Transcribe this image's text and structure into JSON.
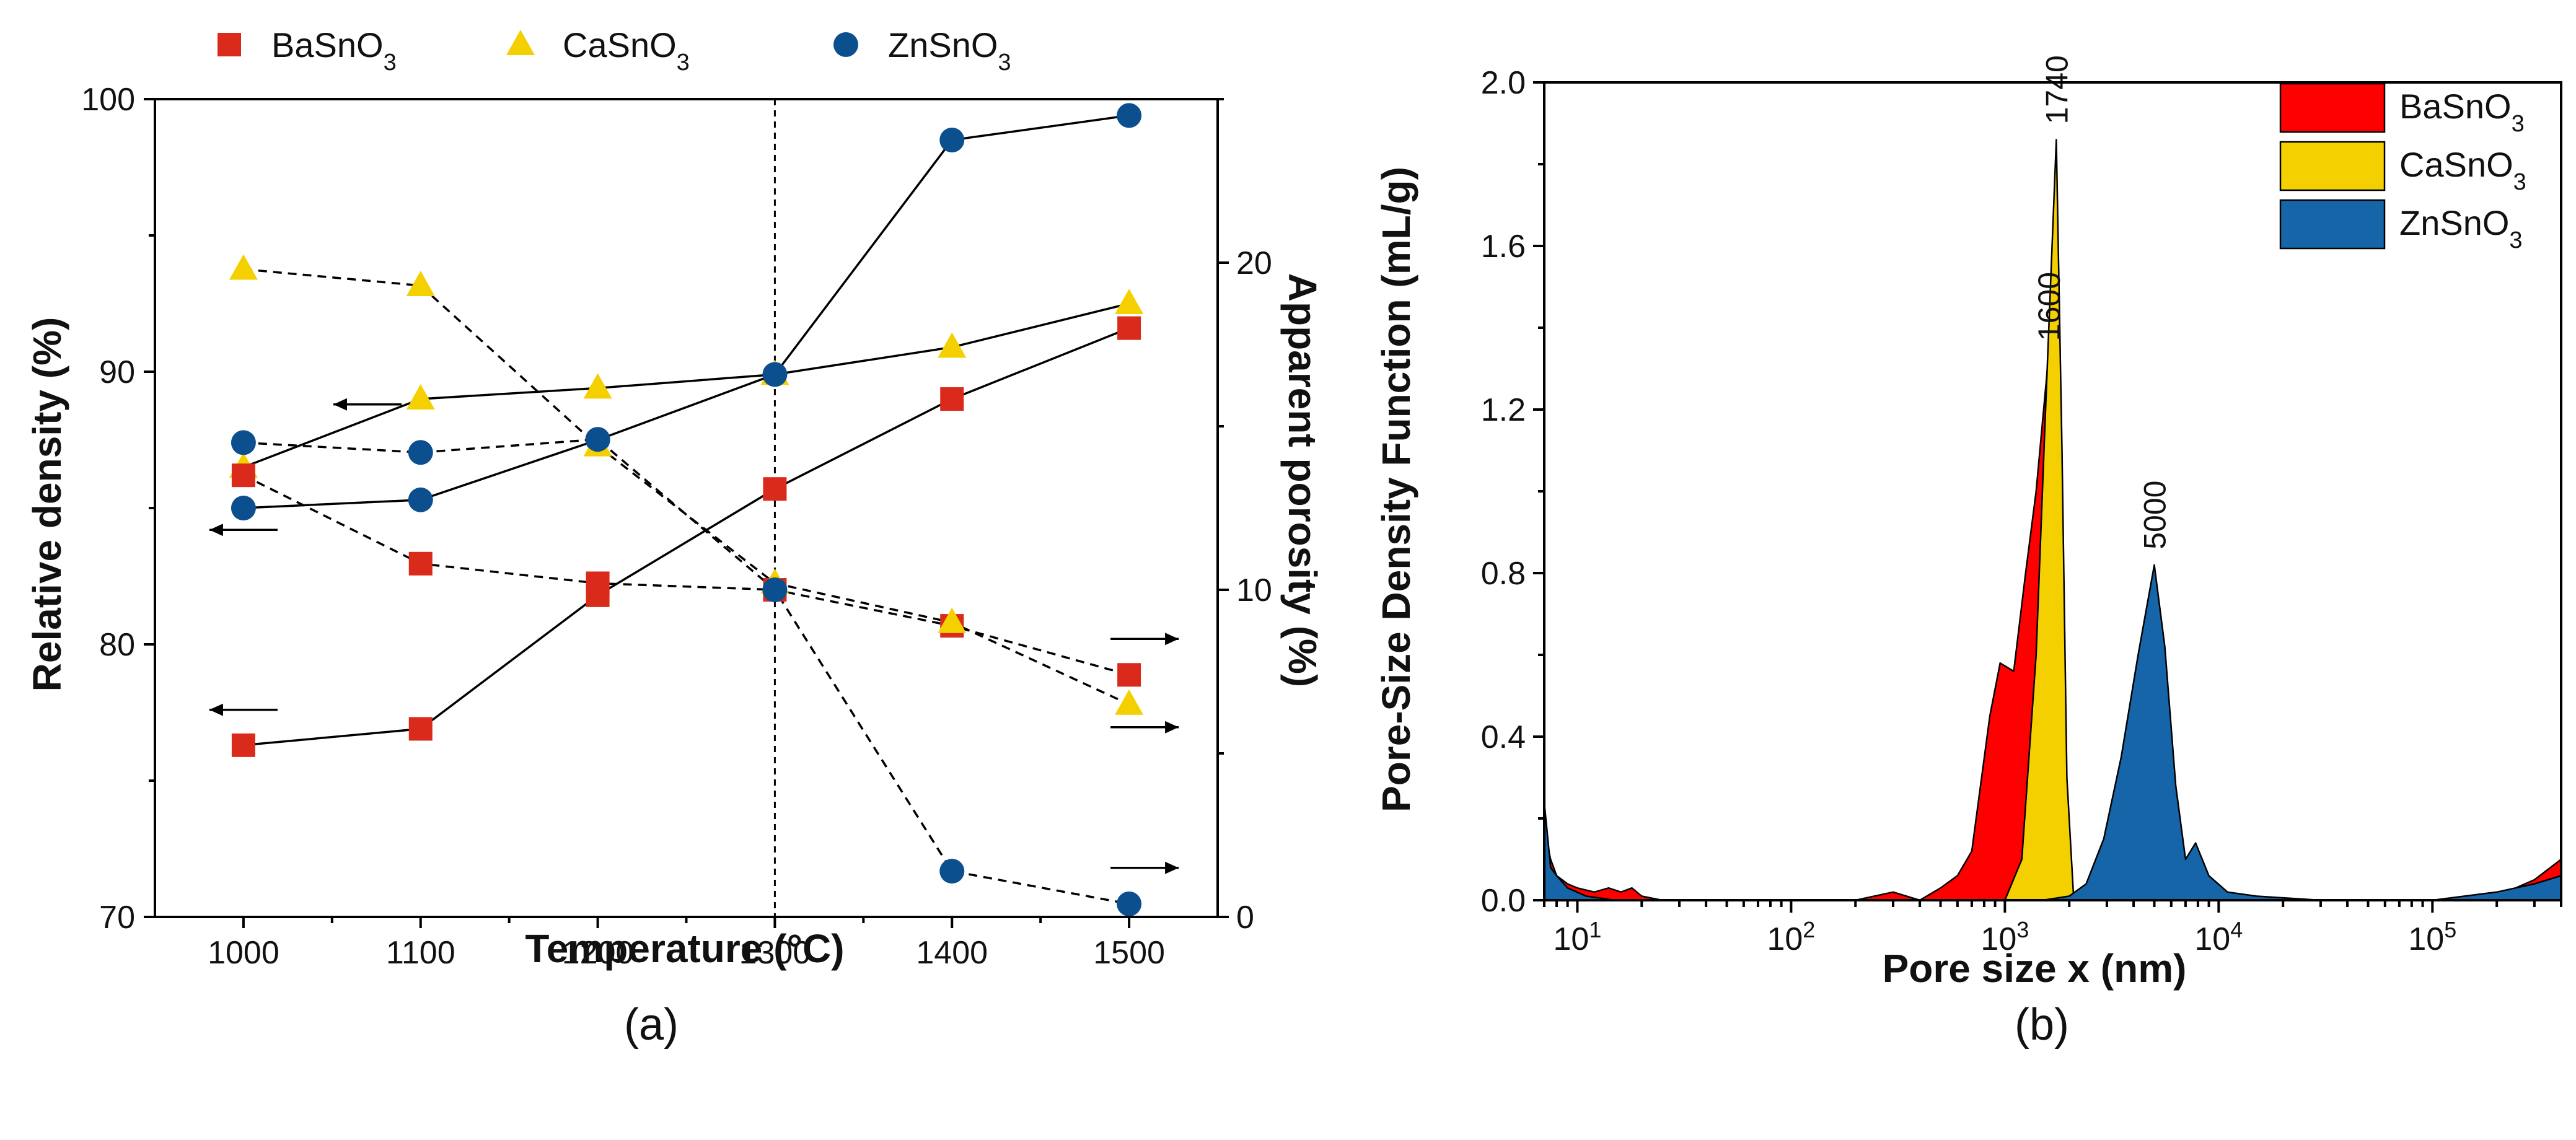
{
  "colors": {
    "BaSnO3": "#d92a1c",
    "CaSnO3": "#f5d000",
    "ZnSnO3": "#0b4f8f",
    "area_red": "#ff0000",
    "area_yellow": "#f5d000",
    "area_blue": "#1565a8"
  },
  "chart_data": [
    {
      "type": "scatter",
      "panel": "(a)",
      "xlabel": "Temperature (°C)",
      "ylabel_left": "Relative density (%)",
      "ylabel_right": "Apparent porosity (%)",
      "xlim": [
        950,
        1550
      ],
      "ylim_left": [
        70,
        100
      ],
      "ylim_right": [
        0,
        25
      ],
      "x_ticks": [
        "1000",
        "1100",
        "1200",
        "1300",
        "1400",
        "1500"
      ],
      "x_tick_values": [
        1000,
        1100,
        1200,
        1300,
        1400,
        1500
      ],
      "y_left_ticks": [
        "70",
        "80",
        "90",
        "100"
      ],
      "y_left_tick_values": [
        70,
        80,
        90,
        100
      ],
      "y_right_ticks": [
        "0",
        "10",
        "20"
      ],
      "y_right_tick_values": [
        0,
        10,
        20
      ],
      "reference_line_x": 1300,
      "legend": {
        "placement": "top",
        "items": [
          {
            "series": "BaSnO3",
            "marker": "square",
            "name": "BaSnO",
            "subscript": "3"
          },
          {
            "series": "CaSnO3",
            "marker": "triangle",
            "name": "CaSnO",
            "subscript": "3"
          },
          {
            "series": "ZnSnO3",
            "marker": "circle",
            "name": "ZnSnO",
            "subscript": "3"
          }
        ]
      },
      "x": [
        1000,
        1100,
        1200,
        1300,
        1400,
        1500
      ],
      "series": [
        {
          "name": "BaSnO3",
          "quantity": "relative density",
          "axis": "left",
          "style": "solid",
          "marker": "square",
          "values": [
            76.3,
            76.9,
            81.8,
            85.7,
            89.0,
            91.6
          ]
        },
        {
          "name": "CaSnO3",
          "quantity": "relative density",
          "axis": "left",
          "style": "solid",
          "marker": "triangle",
          "values": [
            86.5,
            89.0,
            89.4,
            89.9,
            90.9,
            92.5
          ]
        },
        {
          "name": "ZnSnO3",
          "quantity": "relative density",
          "axis": "left",
          "style": "solid",
          "marker": "circle",
          "values": [
            85.0,
            85.3,
            87.5,
            89.9,
            98.5,
            99.4
          ]
        },
        {
          "name": "BaSnO3",
          "quantity": "apparent porosity",
          "axis": "right",
          "style": "dashed",
          "marker": "square",
          "values": [
            13.5,
            10.8,
            10.2,
            10.0,
            8.9,
            7.4
          ]
        },
        {
          "name": "CaSnO3",
          "quantity": "apparent porosity",
          "axis": "right",
          "style": "dashed",
          "marker": "triangle",
          "values": [
            19.8,
            19.3,
            14.4,
            10.2,
            9.0,
            6.5
          ]
        },
        {
          "name": "ZnSnO3",
          "quantity": "apparent porosity",
          "axis": "right",
          "style": "dashed",
          "marker": "circle",
          "values": [
            14.5,
            14.2,
            14.6,
            10.0,
            1.4,
            0.4
          ]
        }
      ],
      "axis_arrows": [
        {
          "series": "CaSnO3",
          "quantity": "relative density",
          "direction": "left",
          "x": 1070,
          "y": 88.8
        },
        {
          "series": "ZnSnO3",
          "quantity": "relative density",
          "direction": "left",
          "x": 1000,
          "y": 84.2
        },
        {
          "series": "BaSnO3",
          "quantity": "relative density",
          "direction": "left",
          "x": 1000,
          "y": 77.6
        },
        {
          "series": "BaSnO3",
          "quantity": "apparent porosity",
          "direction": "right",
          "x": 1500,
          "y": 8.5
        },
        {
          "series": "CaSnO3",
          "quantity": "apparent porosity",
          "direction": "right",
          "x": 1500,
          "y": 5.8
        },
        {
          "series": "ZnSnO3",
          "quantity": "apparent porosity",
          "direction": "right",
          "x": 1500,
          "y": 1.5
        }
      ]
    },
    {
      "type": "area",
      "panel": "(b)",
      "xlabel": "Pore size x (nm)",
      "ylabel": "Pore-Size Density Function (mL/g)",
      "x_scale": "log",
      "xlim": [
        7,
        400000
      ],
      "ylim": [
        0,
        2.0
      ],
      "y_ticks": [
        "0.0",
        "0.4",
        "0.8",
        "1.2",
        "1.6",
        "2.0"
      ],
      "y_tick_values": [
        0.0,
        0.4,
        0.8,
        1.2,
        1.6,
        2.0
      ],
      "x_ticks": [
        {
          "value": 10,
          "base": "10",
          "exp": "1"
        },
        {
          "value": 100,
          "base": "10",
          "exp": "2"
        },
        {
          "value": 1000,
          "base": "10",
          "exp": "3"
        },
        {
          "value": 10000,
          "base": "10",
          "exp": "4"
        },
        {
          "value": 100000,
          "base": "10",
          "exp": "5"
        }
      ],
      "legend": {
        "placement": "top-right",
        "items": [
          {
            "series": "BaSnO3",
            "name": "BaSnO",
            "subscript": "3"
          },
          {
            "series": "CaSnO3",
            "name": "CaSnO",
            "subscript": "3"
          },
          {
            "series": "ZnSnO3",
            "name": "ZnSnO",
            "subscript": "3"
          }
        ]
      },
      "series": [
        {
          "name": "BaSnO3",
          "color_key": "area_red",
          "points": [
            [
              7,
              0.17
            ],
            [
              7.5,
              0.1
            ],
            [
              8,
              0.06
            ],
            [
              9,
              0.04
            ],
            [
              10,
              0.03
            ],
            [
              12,
              0.02
            ],
            [
              14,
              0.03
            ],
            [
              16,
              0.02
            ],
            [
              18,
              0.03
            ],
            [
              20,
              0.01
            ],
            [
              25,
              0.0
            ],
            [
              100,
              0.0
            ],
            [
              200,
              0.0
            ],
            [
              300,
              0.02
            ],
            [
              400,
              0.0
            ],
            [
              500,
              0.03
            ],
            [
              600,
              0.06
            ],
            [
              700,
              0.12
            ],
            [
              850,
              0.45
            ],
            [
              950,
              0.58
            ],
            [
              1100,
              0.56
            ],
            [
              1250,
              0.8
            ],
            [
              1400,
              1.0
            ],
            [
              1600,
              1.33
            ],
            [
              1700,
              1.0
            ],
            [
              1800,
              0.4
            ],
            [
              1900,
              0.05
            ],
            [
              2000,
              0.0
            ],
            [
              100000,
              0.0
            ],
            [
              200000,
              0.01
            ],
            [
              300000,
              0.05
            ],
            [
              400000,
              0.1
            ]
          ]
        },
        {
          "name": "CaSnO3",
          "color_key": "area_yellow",
          "points": [
            [
              7,
              0.0
            ],
            [
              1000,
              0.0
            ],
            [
              1200,
              0.1
            ],
            [
              1400,
              0.6
            ],
            [
              1550,
              1.2
            ],
            [
              1740,
              1.86
            ],
            [
              1850,
              1.1
            ],
            [
              1950,
              0.3
            ],
            [
              2100,
              0.0
            ],
            [
              400000,
              0.0
            ]
          ]
        },
        {
          "name": "ZnSnO3",
          "color_key": "area_blue",
          "points": [
            [
              7,
              0.24
            ],
            [
              7.5,
              0.08
            ],
            [
              8,
              0.06
            ],
            [
              9,
              0.03
            ],
            [
              11,
              0.01
            ],
            [
              15,
              0.0
            ],
            [
              100,
              0.0
            ],
            [
              1500,
              0.0
            ],
            [
              2000,
              0.01
            ],
            [
              2400,
              0.04
            ],
            [
              2900,
              0.15
            ],
            [
              3500,
              0.35
            ],
            [
              4200,
              0.6
            ],
            [
              5000,
              0.82
            ],
            [
              5600,
              0.62
            ],
            [
              6300,
              0.28
            ],
            [
              7000,
              0.1
            ],
            [
              7800,
              0.14
            ],
            [
              9000,
              0.06
            ],
            [
              11000,
              0.02
            ],
            [
              15000,
              0.01
            ],
            [
              30000,
              0.0
            ],
            [
              100000,
              0.0
            ],
            [
              200000,
              0.02
            ],
            [
              300000,
              0.04
            ],
            [
              400000,
              0.06
            ]
          ]
        }
      ],
      "peak_labels": [
        {
          "text": "1740",
          "x": 1740,
          "y": 1.86,
          "series": "CaSnO3"
        },
        {
          "text": "1600",
          "x": 1600,
          "y": 1.33,
          "series": "BaSnO3"
        },
        {
          "text": "5000",
          "x": 5000,
          "y": 0.82,
          "series": "ZnSnO3"
        }
      ]
    }
  ]
}
